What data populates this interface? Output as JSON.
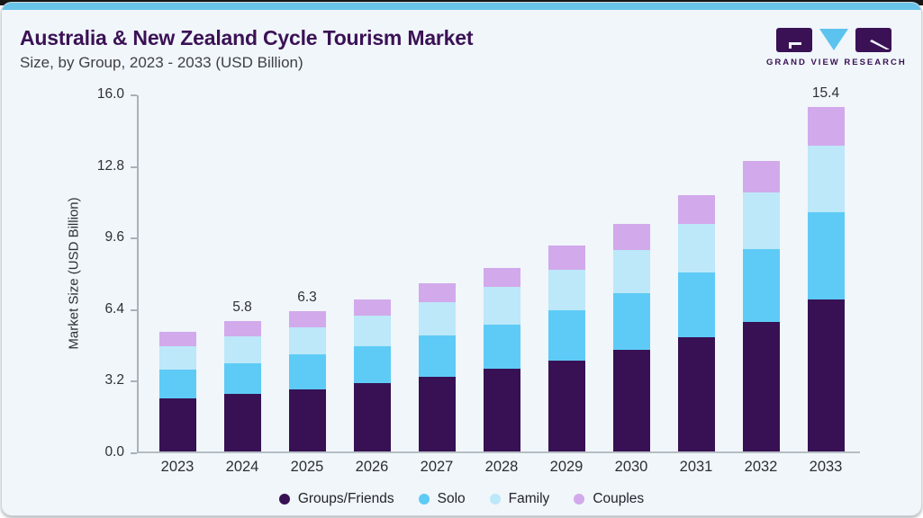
{
  "header": {
    "title": "Australia & New Zealand Cycle Tourism Market",
    "subtitle": "Size, by Group, 2023 - 2033 (USD Billion)"
  },
  "logo": {
    "name": "Grand View Research",
    "text": "GRAND VIEW RESEARCH",
    "mark_purple": "#3b1155",
    "mark_blue": "#5bc3ee"
  },
  "colors": {
    "card_background": "#f0f6fa",
    "accent_bar": "#69c4e9",
    "title_text": "#3b1155",
    "axis_line": "#a9b1b9",
    "tick_text": "#2f3037"
  },
  "chart_data": {
    "type": "bar",
    "stacked": true,
    "title": "Australia & New Zealand Cycle Tourism Market Size, by Group, 2023 - 2033 (USD Billion)",
    "xlabel": "",
    "ylabel": "Market Size (USD Billion)",
    "ylim": [
      0,
      16
    ],
    "yticks": [
      "0.0",
      "3.2",
      "6.4",
      "9.6",
      "12.8",
      "16.0"
    ],
    "grid": false,
    "legend_position": "bottom",
    "categories": [
      "2023",
      "2024",
      "2025",
      "2026",
      "2027",
      "2028",
      "2029",
      "2030",
      "2031",
      "2032",
      "2033"
    ],
    "series": [
      {
        "name": "Groups/Friends",
        "color": "#371153",
        "values": [
          2.39,
          2.57,
          2.78,
          3.05,
          3.35,
          3.69,
          4.05,
          4.53,
          5.1,
          5.77,
          6.81
        ]
      },
      {
        "name": "Solo",
        "color": "#5ecbf6",
        "values": [
          1.27,
          1.38,
          1.55,
          1.65,
          1.82,
          1.97,
          2.28,
          2.54,
          2.92,
          3.26,
          3.88
        ]
      },
      {
        "name": "Family",
        "color": "#bce8f9",
        "values": [
          1.06,
          1.18,
          1.21,
          1.37,
          1.5,
          1.68,
          1.81,
          1.94,
          2.17,
          2.53,
          2.99
        ]
      },
      {
        "name": "Couples",
        "color": "#d2a9eb",
        "values": [
          0.64,
          0.7,
          0.72,
          0.72,
          0.83,
          0.88,
          1.05,
          1.18,
          1.27,
          1.41,
          1.72
        ]
      }
    ],
    "bar_labels": [
      "",
      "5.8",
      "6.3",
      "",
      "",
      "",
      "",
      "",
      "",
      "",
      "15.4"
    ],
    "legend": [
      "Groups/Friends",
      "Solo",
      "Family",
      "Couples"
    ]
  }
}
